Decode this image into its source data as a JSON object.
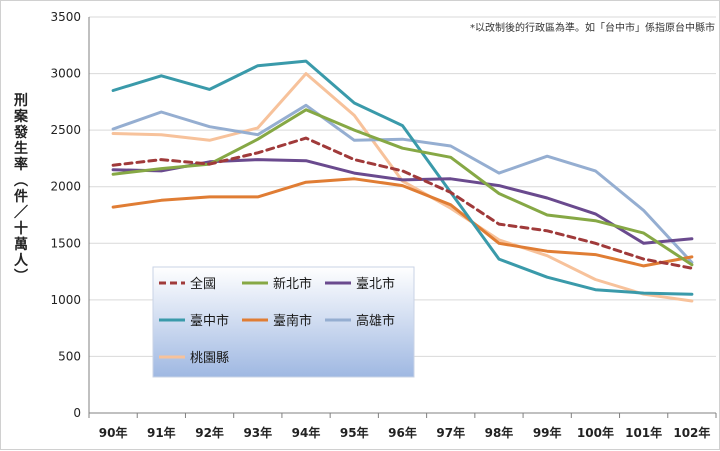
{
  "chart_data": {
    "type": "line",
    "title": "",
    "note": "*以改制後的行政區為準。如「台中市」係指原台中縣市",
    "ylabel": "刑案發生率（件/十萬人）",
    "ylim": [
      0,
      3500
    ],
    "yticks": [
      0,
      500,
      1000,
      1500,
      2000,
      2500,
      3000,
      3500
    ],
    "ytick_labels": [
      "0",
      "500",
      "1000",
      "1500",
      "2000",
      "2500",
      "3000",
      "3500"
    ],
    "categories": [
      "90年",
      "91年",
      "92年",
      "93年",
      "94年",
      "95年",
      "96年",
      "97年",
      "98年",
      "99年",
      "100年",
      "101年",
      "102年"
    ],
    "grid": true,
    "legend_position": "lower-left",
    "series": [
      {
        "name": "全國",
        "color": "#a03a3a",
        "dashed": true,
        "values": [
          2190,
          2240,
          2200,
          2300,
          2430,
          2240,
          2140,
          1950,
          1670,
          1610,
          1500,
          1360,
          1280
        ]
      },
      {
        "name": "新北市",
        "color": "#86a845",
        "dashed": false,
        "values": [
          2110,
          2160,
          2200,
          2420,
          2680,
          2500,
          2340,
          2260,
          1940,
          1750,
          1700,
          1590,
          1310
        ]
      },
      {
        "name": "臺北市",
        "color": "#6a4a8e",
        "dashed": false,
        "values": [
          2150,
          2140,
          2220,
          2240,
          2230,
          2120,
          2060,
          2070,
          2010,
          1900,
          1760,
          1500,
          1540
        ]
      },
      {
        "name": "臺中市",
        "color": "#3a9aaa",
        "dashed": false,
        "values": [
          2850,
          2980,
          2860,
          3070,
          3110,
          2740,
          2540,
          1950,
          1360,
          1200,
          1090,
          1060,
          1050
        ]
      },
      {
        "name": "臺南市",
        "color": "#e07d34",
        "dashed": false,
        "values": [
          1820,
          1880,
          1910,
          1910,
          2040,
          2070,
          2010,
          1840,
          1500,
          1430,
          1400,
          1300,
          1380
        ]
      },
      {
        "name": "高雄市",
        "color": "#95aed1",
        "dashed": false,
        "values": [
          2510,
          2660,
          2530,
          2460,
          2720,
          2410,
          2420,
          2360,
          2120,
          2270,
          2140,
          1790,
          1330
        ]
      },
      {
        "name": "桃園縣",
        "color": "#f7c29b",
        "dashed": false,
        "values": [
          2470,
          2460,
          2410,
          2520,
          3000,
          2630,
          2050,
          1810,
          1530,
          1390,
          1180,
          1050,
          990
        ]
      }
    ]
  }
}
